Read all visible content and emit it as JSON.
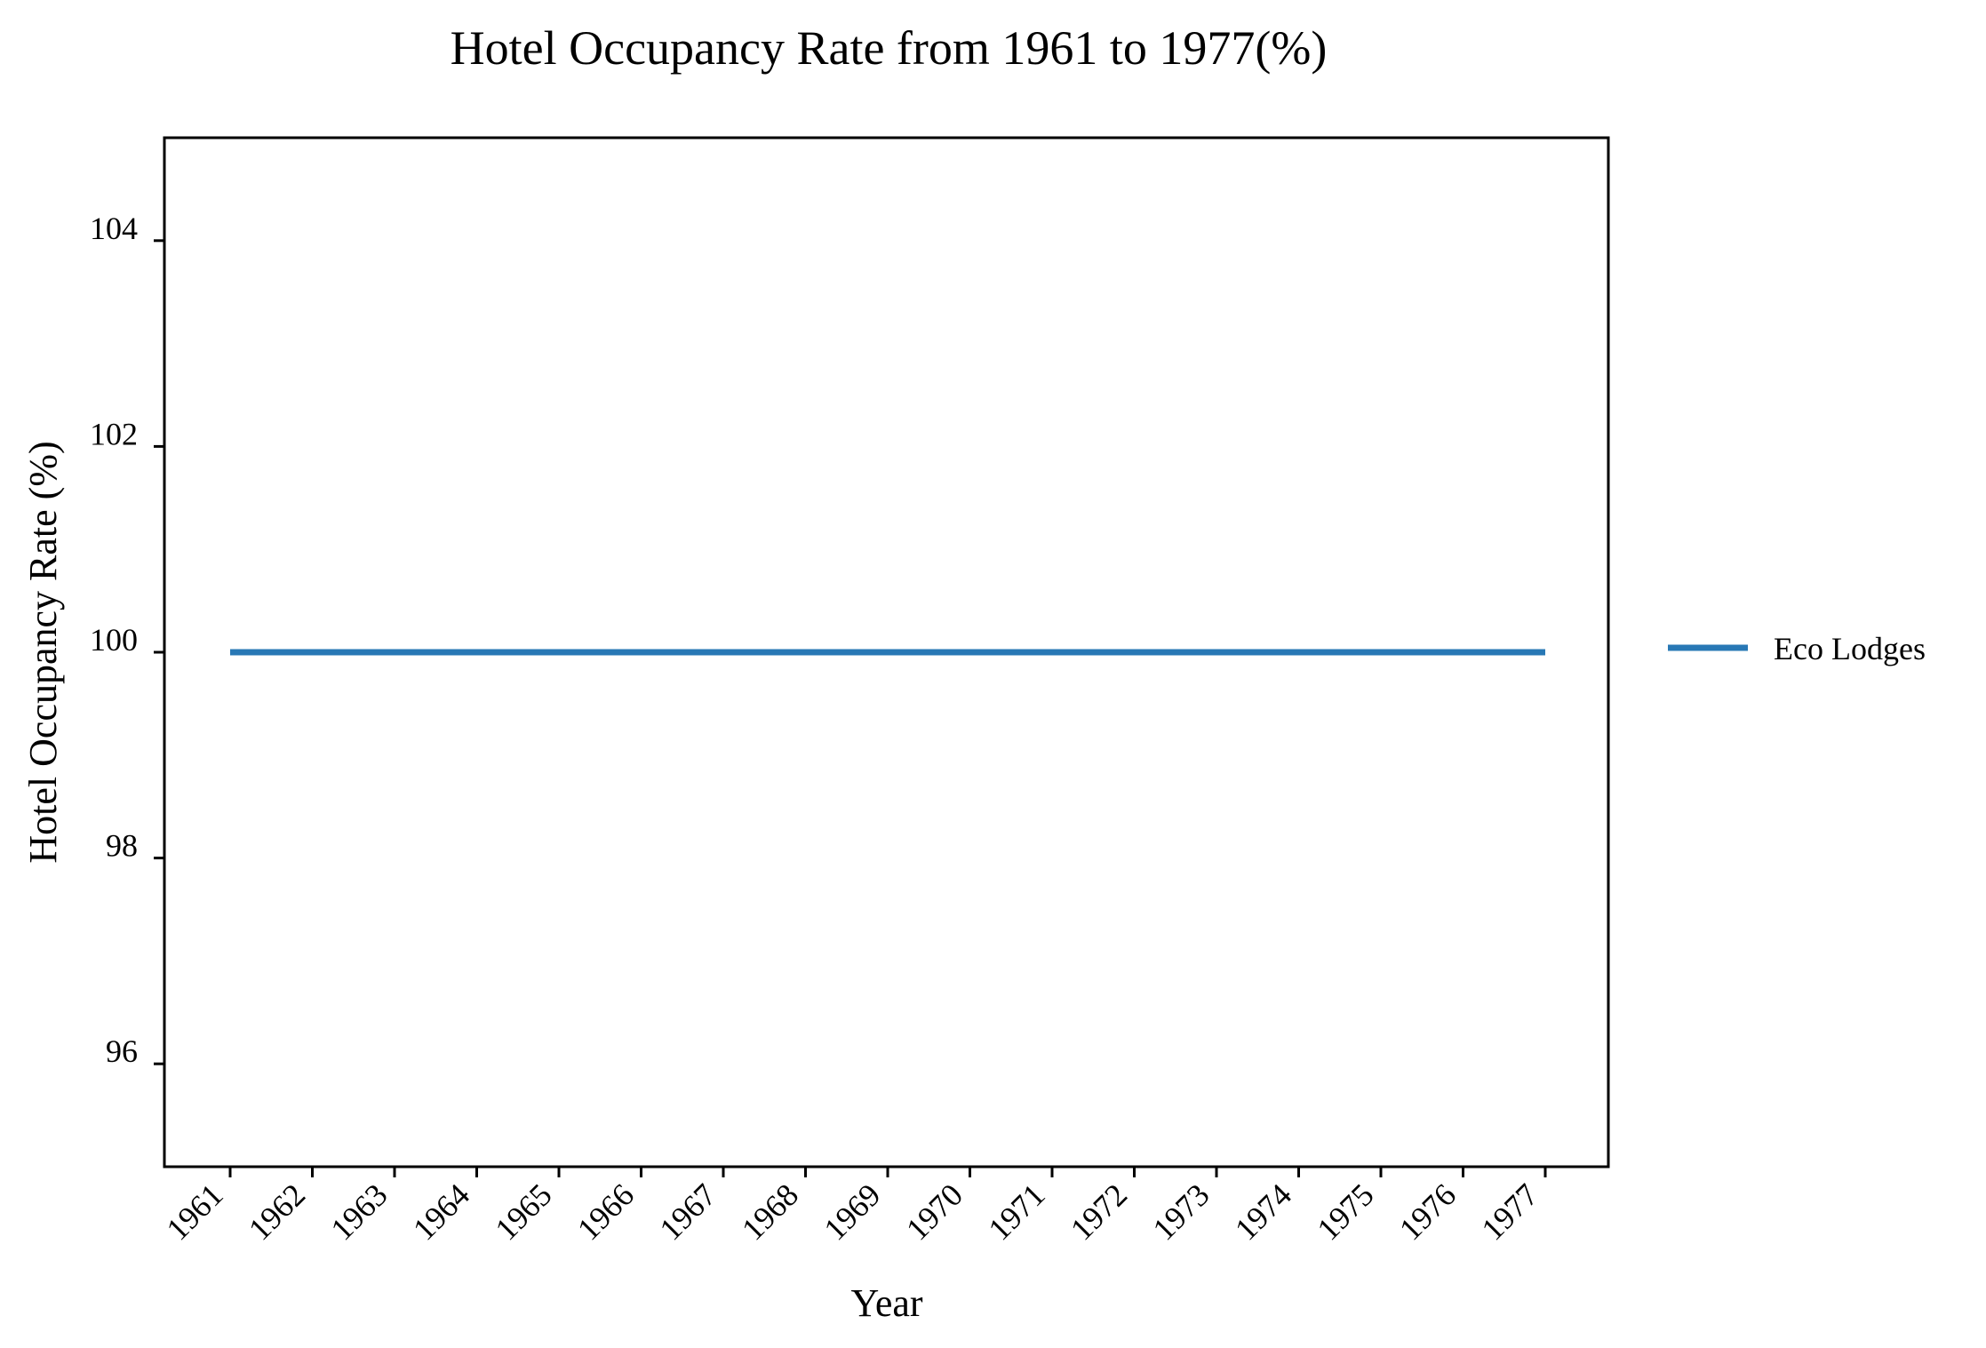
{
  "chart_data": {
    "type": "line",
    "title": "Hotel Occupancy Rate from 1961 to 1977(%)",
    "xlabel": "Year",
    "ylabel": "Hotel Occupancy Rate (%)",
    "categories": [
      "1961",
      "1962",
      "1963",
      "1964",
      "1965",
      "1966",
      "1967",
      "1968",
      "1969",
      "1970",
      "1971",
      "1972",
      "1973",
      "1974",
      "1975",
      "1976",
      "1977"
    ],
    "ylim": [
      95,
      105
    ],
    "yticks": [
      96,
      98,
      100,
      102,
      104
    ],
    "grid": false,
    "legend_position": "right",
    "series": [
      {
        "name": "Eco Lodges",
        "color": "#2878b5",
        "values": [
          100,
          100,
          100,
          100,
          100,
          100,
          100,
          100,
          100,
          100,
          100,
          100,
          100,
          100,
          100,
          100,
          100
        ]
      }
    ]
  }
}
